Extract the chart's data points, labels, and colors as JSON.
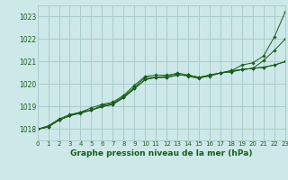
{
  "title": "Graphe pression niveau de la mer (hPa)",
  "bg_color": "#cce8e8",
  "grid_color": "#aacccc",
  "line_color": "#1a5c1a",
  "xlim": [
    0,
    23
  ],
  "ylim": [
    1017.5,
    1023.5
  ],
  "yticks": [
    1018,
    1019,
    1020,
    1021,
    1022,
    1023
  ],
  "xticks": [
    0,
    1,
    2,
    3,
    4,
    5,
    6,
    7,
    8,
    9,
    10,
    11,
    12,
    13,
    14,
    15,
    16,
    17,
    18,
    19,
    20,
    21,
    22,
    23
  ],
  "series": [
    [
      1018.0,
      1018.1,
      1018.4,
      1018.6,
      1018.7,
      1018.85,
      1019.05,
      1019.15,
      1019.45,
      1019.85,
      1020.3,
      1020.3,
      1020.35,
      1020.5,
      1020.4,
      1020.3,
      1020.35,
      1020.5,
      1020.6,
      1020.85,
      1020.95,
      1021.25,
      1022.1,
      1023.2
    ],
    [
      1018.0,
      1018.15,
      1018.45,
      1018.65,
      1018.75,
      1018.95,
      1019.1,
      1019.2,
      1019.5,
      1019.95,
      1020.35,
      1020.4,
      1020.4,
      1020.45,
      1020.35,
      1020.25,
      1020.4,
      1020.5,
      1020.6,
      1020.65,
      1020.7,
      1021.05,
      1021.5,
      1022.0
    ],
    [
      1018.0,
      1018.1,
      1018.4,
      1018.6,
      1018.75,
      1018.85,
      1019.0,
      1019.1,
      1019.4,
      1019.8,
      1020.2,
      1020.3,
      1020.3,
      1020.4,
      1020.4,
      1020.3,
      1020.4,
      1020.5,
      1020.55,
      1020.65,
      1020.7,
      1020.75,
      1020.85,
      1021.0
    ],
    [
      1018.0,
      1018.1,
      1018.4,
      1018.6,
      1018.75,
      1018.85,
      1019.0,
      1019.1,
      1019.4,
      1019.8,
      1020.2,
      1020.3,
      1020.3,
      1020.4,
      1020.4,
      1020.3,
      1020.4,
      1020.5,
      1020.55,
      1020.65,
      1020.7,
      1020.75,
      1020.85,
      1021.0
    ]
  ]
}
